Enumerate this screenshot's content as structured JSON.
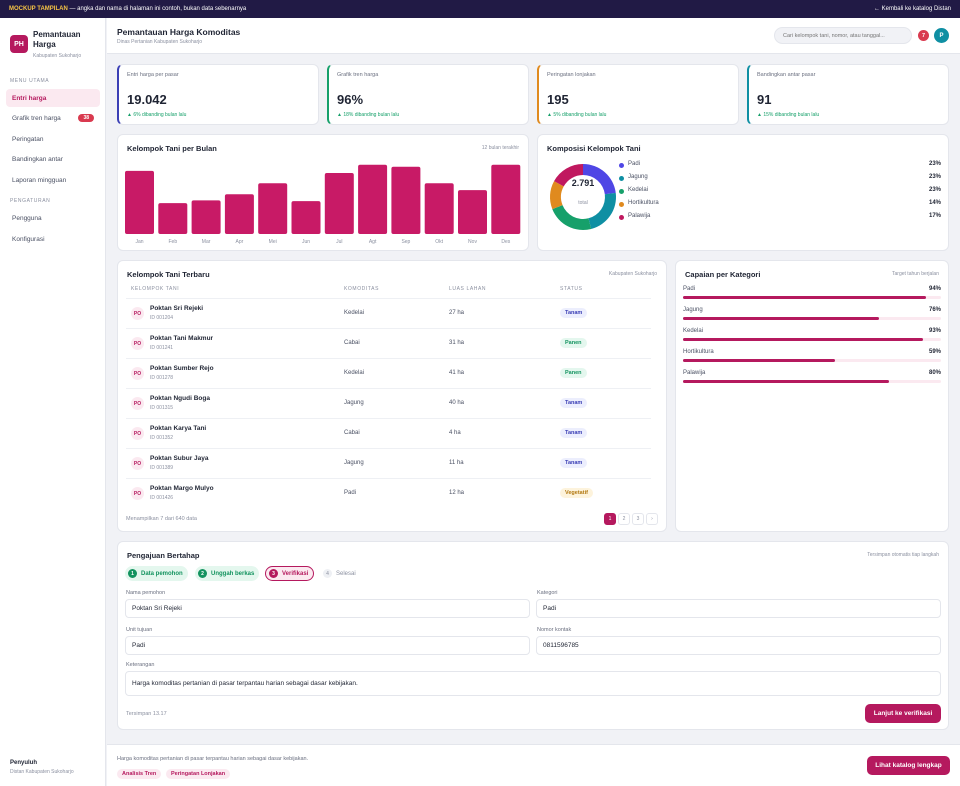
{
  "banner": {
    "tag": "MOCKUP TAMPILAN",
    "text": "— angka dan nama di halaman ini contoh, bukan data sebenarnya",
    "back_link": "← Kembali ke katalog Distan"
  },
  "sidebar": {
    "logo": "PH",
    "brand": "Pemantauan Harga",
    "brand_sub": "Kabupaten Sukoharjo",
    "section_main": "MENU UTAMA",
    "section_settings": "PENGATURAN",
    "items": [
      {
        "label": "Entri harga",
        "active": true
      },
      {
        "label": "Grafik tren harga",
        "count": "38"
      },
      {
        "label": "Peringatan"
      },
      {
        "label": "Bandingkan antar"
      },
      {
        "label": "Laporan mingguan"
      }
    ],
    "settings": [
      {
        "label": "Pengguna"
      },
      {
        "label": "Konfigurasi"
      }
    ],
    "footer_name": "Penyuluh",
    "footer_role": "Distan Kabupaten Sukoharjo"
  },
  "header": {
    "title": "Pemantauan Harga Komoditas",
    "subtitle": "Dinas Pertanian Kabupaten Sukoharjo",
    "search_placeholder": "Cari kelompok tani, nomor, atau tanggal...",
    "notif_count": "7",
    "avatar": "P"
  },
  "kpis": [
    {
      "label": "Entri harga per pasar",
      "value": "19.042",
      "delta": "▲ 6% dibanding bulan lalu",
      "accent": "#3b3fb5"
    },
    {
      "label": "Grafik tren harga",
      "value": "96%",
      "delta": "▲ 18% dibanding bulan lalu",
      "accent": "#16a06a"
    },
    {
      "label": "Peringatan lonjakan",
      "value": "195",
      "delta": "▲ 5% dibanding bulan lalu",
      "accent": "#e08a1e"
    },
    {
      "label": "Bandingkan antar pasar",
      "value": "91",
      "delta": "▲ 15% dibanding bulan lalu",
      "accent": "#0f8fa3"
    }
  ],
  "bar_card": {
    "title": "Kelompok Tani per Bulan",
    "note": "12 bulan terakhir"
  },
  "donut_card": {
    "title": "Komposisi Kelompok Tani",
    "total_value": "2.791",
    "total_label": "total"
  },
  "chart_data": [
    {
      "type": "bar",
      "title": "Kelompok Tani per Bulan",
      "categories": [
        "Jan",
        "Feb",
        "Mar",
        "Apr",
        "Mei",
        "Jun",
        "Jul",
        "Agt",
        "Sep",
        "Okt",
        "Nov",
        "Des"
      ],
      "values": [
        92,
        45,
        49,
        58,
        74,
        48,
        89,
        101,
        98,
        74,
        64,
        101
      ],
      "ylim": [
        0,
        105
      ],
      "grid": false,
      "color": "#c81a66"
    },
    {
      "type": "pie",
      "title": "Komposisi Kelompok Tani",
      "labels": [
        "Padi",
        "Jagung",
        "Kedelai",
        "Hortikultura",
        "Palawija"
      ],
      "values": [
        23,
        23,
        23,
        14,
        17
      ],
      "display": [
        "23%",
        "23%",
        "23%",
        "14%",
        "17%"
      ],
      "colors": [
        "#4f46e5",
        "#0f8fa3",
        "#16a06a",
        "#e08a1e",
        "#c0185f"
      ],
      "legend": "right"
    }
  ],
  "table": {
    "title": "Kelompok Tani Terbaru",
    "note": "Kabupaten Sukoharjo",
    "columns": [
      "KELOMPOK TANI",
      "KOMODITAS",
      "LUAS LAHAN",
      "STATUS"
    ],
    "rows": [
      {
        "badge": "PO",
        "name": "Poktan Sri Rejeki",
        "id": "ID 001204",
        "komoditas": "Kedelai",
        "luas": "27 ha",
        "status": "Tanam",
        "kind": "tanam"
      },
      {
        "badge": "PO",
        "name": "Poktan Tani Makmur",
        "id": "ID 001241",
        "komoditas": "Cabai",
        "luas": "31 ha",
        "status": "Panen",
        "kind": "panen"
      },
      {
        "badge": "PO",
        "name": "Poktan Sumber Rejo",
        "id": "ID 001278",
        "komoditas": "Kedelai",
        "luas": "41 ha",
        "status": "Panen",
        "kind": "panen"
      },
      {
        "badge": "PO",
        "name": "Poktan Ngudi Boga",
        "id": "ID 001315",
        "komoditas": "Jagung",
        "luas": "40 ha",
        "status": "Tanam",
        "kind": "tanam"
      },
      {
        "badge": "PO",
        "name": "Poktan Karya Tani",
        "id": "ID 001352",
        "komoditas": "Cabai",
        "luas": "4 ha",
        "status": "Tanam",
        "kind": "tanam"
      },
      {
        "badge": "PO",
        "name": "Poktan Subur Jaya",
        "id": "ID 001389",
        "komoditas": "Jagung",
        "luas": "11 ha",
        "status": "Tanam",
        "kind": "tanam"
      },
      {
        "badge": "PO",
        "name": "Poktan Margo Mulyo",
        "id": "ID 001426",
        "komoditas": "Padi",
        "luas": "12 ha",
        "status": "Vegetatif",
        "kind": "veg"
      }
    ],
    "summary": "Menampilkan 7 dari 640 data",
    "pages": [
      "1",
      "2",
      "3",
      "›"
    ]
  },
  "categories": {
    "title": "Capaian per Kategori",
    "note": "Target tahun berjalan",
    "items": [
      {
        "name": "Padi",
        "label": "94%",
        "value": 0.94
      },
      {
        "name": "Jagung",
        "label": "76%",
        "value": 0.76
      },
      {
        "name": "Kedelai",
        "label": "93%",
        "value": 0.93
      },
      {
        "name": "Hortikultura",
        "label": "59%",
        "value": 0.59
      },
      {
        "name": "Palawija",
        "label": "80%",
        "value": 0.8
      }
    ]
  },
  "form": {
    "title": "Pengajuan Bertahap",
    "note": "Tersimpan otomatis tiap langkah",
    "steps": [
      {
        "num": "1",
        "label": "Data pemohon",
        "state": "done"
      },
      {
        "num": "2",
        "label": "Unggah berkas",
        "state": "done"
      },
      {
        "num": "3",
        "label": "Verifikasi",
        "state": "cur"
      },
      {
        "num": "4",
        "label": "Selesai",
        "state": "next"
      }
    ],
    "name_label": "Nama pemohon",
    "name_value": "Poktan Sri Rejeki",
    "cat_label": "Kategori",
    "cat_value": "Padi",
    "unit_label": "Unit tujuan",
    "unit_value": "Padi",
    "phone_label": "Nomor kontak",
    "phone_value": "0811596785",
    "note_label": "Keterangan",
    "note_value": "Harga komoditas pertanian di pasar terpantau harian sebagai dasar kebijakan.",
    "saved": "Tersimpan 13.17",
    "submit": "Lanjut ke verifikasi"
  },
  "footer": {
    "text": "Harga komoditas pertanian di pasar terpantau harian sebagai dasar kebijakan.",
    "chips": [
      "Analisis Tren",
      "Peringatan Lonjakan"
    ],
    "cta": "Lihat katalog lengkap"
  }
}
